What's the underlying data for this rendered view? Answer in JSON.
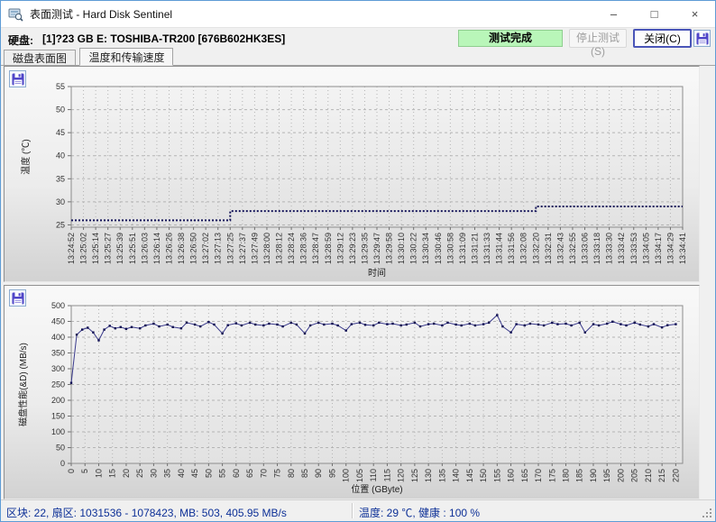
{
  "window": {
    "title": "表面测试 - Hard Disk Sentinel",
    "minimize_glyph": "–",
    "maximize_glyph": "□",
    "close_glyph": "×"
  },
  "header": {
    "disk_label": "硬盘:",
    "disk_value": "[1]?23 GB E: TOSHIBA-TR200 [676B602HK3ES]",
    "status_text": "测试完成",
    "stop_button": "停止测试(S)",
    "close_button": "关闭(C)"
  },
  "tabs": [
    {
      "label": "磁盘表面图",
      "active": false
    },
    {
      "label": "温度和传输速度",
      "active": true
    }
  ],
  "statusbar": {
    "left": "区块: 22, 扇区: 1031536 - 1078423, MB: 503, 405.95 MB/s",
    "right": "温度: 29 ℃,  健康 :  100 %"
  },
  "colors": {
    "status_green": "#b9f6b9",
    "temp_line": "#14145a",
    "speed_line": "#3a3a8c",
    "speed_marker": "#0a0a50",
    "grid": "#b4b4b4",
    "save_icon_purple": "#4f46c8"
  },
  "chart_data": [
    {
      "type": "line",
      "title": "",
      "xlabel": "时间",
      "ylabel": "温度 (℃)",
      "ylim": [
        24.5,
        55
      ],
      "yticks": [
        25,
        30,
        35,
        40,
        45,
        50,
        55
      ],
      "grid": true,
      "legend": "none",
      "line_style": "dotted-step",
      "x_ticklabels": [
        "13:24:52",
        "13:25:02",
        "13:25:14",
        "13:25:27",
        "13:25:39",
        "13:25:51",
        "13:26:03",
        "13:26:14",
        "13:26:26",
        "13:26:38",
        "13:26:50",
        "13:27:02",
        "13:27:13",
        "13:27:25",
        "13:27:37",
        "13:27:49",
        "13:28:00",
        "13:28:12",
        "13:28:24",
        "13:28:36",
        "13:28:47",
        "13:28:59",
        "13:29:12",
        "13:29:23",
        "13:29:35",
        "13:29:47",
        "13:29:58",
        "13:30:10",
        "13:30:22",
        "13:30:34",
        "13:30:46",
        "13:30:58",
        "13:31:09",
        "13:31:21",
        "13:31:33",
        "13:31:44",
        "13:31:56",
        "13:32:08",
        "13:32:20",
        "13:32:31",
        "13:32:43",
        "13:32:55",
        "13:33:06",
        "13:33:18",
        "13:33:30",
        "13:33:42",
        "13:33:53",
        "13:34:05",
        "13:34:17",
        "13:34:29",
        "13:34:41"
      ],
      "series": [
        {
          "name": "温度",
          "values": [
            26,
            26,
            26,
            26,
            26,
            26,
            26,
            26,
            26,
            26,
            26,
            26,
            26,
            28,
            28,
            28,
            28,
            28,
            28,
            28,
            28,
            28,
            28,
            28,
            28,
            28,
            28,
            28,
            28,
            28,
            28,
            28,
            28,
            28,
            28,
            28,
            28,
            28,
            29,
            29,
            29,
            29,
            29,
            29,
            29,
            29,
            29,
            29,
            29,
            29,
            29
          ]
        }
      ]
    },
    {
      "type": "line",
      "title": "",
      "xlabel": "位置 (GByte)",
      "ylabel": "磁盘性能(&D) (MB/s)",
      "xlim": [
        0,
        220
      ],
      "xtick_step": 5,
      "ylim": [
        0,
        500
      ],
      "yticks": [
        0,
        50,
        100,
        150,
        200,
        250,
        300,
        350,
        400,
        450,
        500
      ],
      "grid": true,
      "legend": "none",
      "line_style": "solid-markers",
      "points": [
        [
          0,
          255
        ],
        [
          2,
          408
        ],
        [
          4,
          424
        ],
        [
          6,
          430
        ],
        [
          8,
          415
        ],
        [
          10,
          390
        ],
        [
          12,
          424
        ],
        [
          14,
          436
        ],
        [
          16,
          428
        ],
        [
          18,
          432
        ],
        [
          20,
          426
        ],
        [
          22,
          432
        ],
        [
          25,
          428
        ],
        [
          27,
          437
        ],
        [
          30,
          443
        ],
        [
          32,
          434
        ],
        [
          35,
          440
        ],
        [
          37,
          432
        ],
        [
          40,
          428
        ],
        [
          42,
          446
        ],
        [
          45,
          440
        ],
        [
          47,
          434
        ],
        [
          50,
          448
        ],
        [
          52,
          440
        ],
        [
          55,
          412
        ],
        [
          57,
          438
        ],
        [
          60,
          444
        ],
        [
          62,
          437
        ],
        [
          65,
          446
        ],
        [
          67,
          440
        ],
        [
          70,
          437
        ],
        [
          72,
          443
        ],
        [
          75,
          440
        ],
        [
          77,
          434
        ],
        [
          80,
          446
        ],
        [
          82,
          440
        ],
        [
          85,
          412
        ],
        [
          87,
          437
        ],
        [
          90,
          446
        ],
        [
          92,
          440
        ],
        [
          95,
          443
        ],
        [
          97,
          437
        ],
        [
          100,
          421
        ],
        [
          102,
          441
        ],
        [
          105,
          446
        ],
        [
          107,
          439
        ],
        [
          110,
          437
        ],
        [
          112,
          446
        ],
        [
          115,
          441
        ],
        [
          117,
          443
        ],
        [
          120,
          437
        ],
        [
          122,
          440
        ],
        [
          125,
          446
        ],
        [
          127,
          434
        ],
        [
          130,
          441
        ],
        [
          132,
          443
        ],
        [
          135,
          437
        ],
        [
          137,
          446
        ],
        [
          140,
          440
        ],
        [
          142,
          437
        ],
        [
          145,
          443
        ],
        [
          147,
          437
        ],
        [
          150,
          441
        ],
        [
          152,
          446
        ],
        [
          155,
          470
        ],
        [
          157,
          434
        ],
        [
          160,
          415
        ],
        [
          162,
          441
        ],
        [
          165,
          437
        ],
        [
          167,
          443
        ],
        [
          170,
          440
        ],
        [
          172,
          437
        ],
        [
          175,
          446
        ],
        [
          177,
          441
        ],
        [
          180,
          443
        ],
        [
          182,
          437
        ],
        [
          185,
          446
        ],
        [
          187,
          415
        ],
        [
          190,
          441
        ],
        [
          192,
          437
        ],
        [
          195,
          443
        ],
        [
          197,
          449
        ],
        [
          200,
          441
        ],
        [
          202,
          437
        ],
        [
          205,
          446
        ],
        [
          207,
          440
        ],
        [
          210,
          434
        ],
        [
          212,
          441
        ],
        [
          215,
          431
        ],
        [
          217,
          438
        ],
        [
          220,
          441
        ]
      ]
    }
  ]
}
